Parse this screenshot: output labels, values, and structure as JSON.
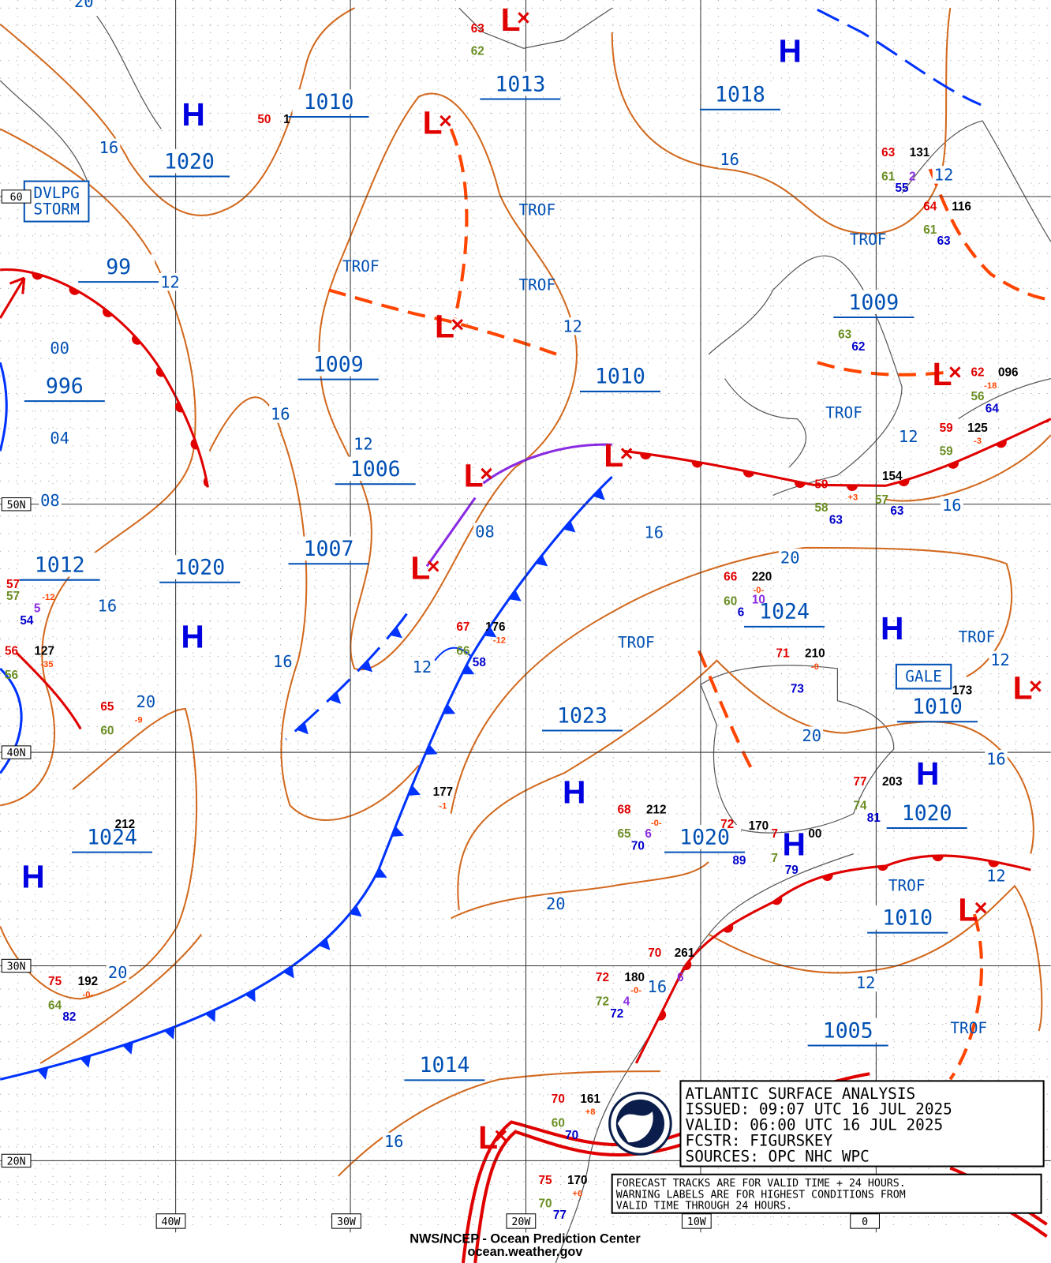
{
  "pressure_labels": [
    "1010",
    "1013",
    "1018",
    "1020",
    "99",
    "996",
    "1009",
    "1010",
    "1009",
    "1006",
    "1007",
    "1012",
    "1020",
    "1024",
    "1023",
    "1010",
    "1020",
    "1024",
    "1020",
    "1010",
    "1005",
    "1014"
  ],
  "highs": [
    "H",
    "H",
    "H",
    "H",
    "H",
    "H",
    "H",
    "H"
  ],
  "lows": [
    "L",
    "L",
    "L",
    "L",
    "L",
    "L",
    "L",
    "L",
    "L",
    "L"
  ],
  "trof_labels": [
    "TROF",
    "TROF",
    "TROF",
    "TROF",
    "TROF",
    "TROF",
    "TROF",
    "TROF",
    "TROF"
  ],
  "isobar_labels": [
    "20",
    "16",
    "12",
    "00",
    "04",
    "08",
    "16",
    "12",
    "12",
    "16",
    "12",
    "12",
    "16",
    "08",
    "16",
    "20",
    "16",
    "16",
    "12",
    "20",
    "12",
    "20",
    "16",
    "12",
    "20",
    "20",
    "16",
    "12",
    "16"
  ],
  "warning_boxes": [
    {
      "lines": [
        "DVLPG",
        "STORM"
      ]
    },
    {
      "lines": [
        "GALE"
      ]
    }
  ],
  "latitude_labels": [
    "60",
    "50N",
    "40N",
    "30N",
    "20N"
  ],
  "longitude_labels": [
    "40W",
    "30W",
    "20W",
    "10W",
    "0"
  ],
  "stations": [
    {
      "text": "63",
      "color": "#e00000"
    },
    {
      "text": "62",
      "color": "#6b8e23"
    },
    {
      "text": "50",
      "color": "#e00000"
    },
    {
      "text": "1",
      "color": "#000"
    },
    {
      "text": "63",
      "color": "#e00000"
    },
    {
      "text": "131",
      "color": "#000"
    },
    {
      "text": "61",
      "color": "#6b8e23"
    },
    {
      "text": "2",
      "color": "#8a2be2"
    },
    {
      "text": "55",
      "color": "#0000cc"
    },
    {
      "text": "64",
      "color": "#e00000"
    },
    {
      "text": "116",
      "color": "#000"
    },
    {
      "text": "61",
      "color": "#6b8e23"
    },
    {
      "text": "63",
      "color": "#0000cc"
    },
    {
      "text": "63",
      "color": "#6b8e23"
    },
    {
      "text": "62",
      "color": "#0000cc"
    },
    {
      "text": "62",
      "color": "#e00000"
    },
    {
      "text": "096",
      "color": "#000"
    },
    {
      "text": "-18",
      "color": "#ff4500"
    },
    {
      "text": "56",
      "color": "#6b8e23"
    },
    {
      "text": "64",
      "color": "#0000cc"
    },
    {
      "text": "59",
      "color": "#e00000"
    },
    {
      "text": "125",
      "color": "#000"
    },
    {
      "text": "-3",
      "color": "#ff4500"
    },
    {
      "text": "59",
      "color": "#6b8e23"
    },
    {
      "text": "59",
      "color": "#e00000"
    },
    {
      "text": "154",
      "color": "#000"
    },
    {
      "text": "+3",
      "color": "#ff4500"
    },
    {
      "text": "57",
      "color": "#6b8e23"
    },
    {
      "text": "58",
      "color": "#6b8e23"
    },
    {
      "text": "63",
      "color": "#0000cc"
    },
    {
      "text": "63",
      "color": "#0000cc"
    },
    {
      "text": "57",
      "color": "#e00000"
    },
    {
      "text": "-12",
      "color": "#ff4500"
    },
    {
      "text": "57",
      "color": "#6b8e23"
    },
    {
      "text": "54",
      "color": "#0000cc"
    },
    {
      "text": "5",
      "color": "#8a2be2"
    },
    {
      "text": "56",
      "color": "#e00000"
    },
    {
      "text": "127",
      "color": "#000"
    },
    {
      "text": "-35",
      "color": "#ff4500"
    },
    {
      "text": "56",
      "color": "#6b8e23"
    },
    {
      "text": "65",
      "color": "#e00000"
    },
    {
      "text": "-9",
      "color": "#ff4500"
    },
    {
      "text": "60",
      "color": "#6b8e23"
    },
    {
      "text": "67",
      "color": "#e00000"
    },
    {
      "text": "176",
      "color": "#000"
    },
    {
      "text": "-12",
      "color": "#ff4500"
    },
    {
      "text": "66",
      "color": "#6b8e23"
    },
    {
      "text": "58",
      "color": "#0000cc"
    },
    {
      "text": "66",
      "color": "#e00000"
    },
    {
      "text": "220",
      "color": "#000"
    },
    {
      "text": "-0-",
      "color": "#ff4500"
    },
    {
      "text": "60",
      "color": "#6b8e23"
    },
    {
      "text": "10",
      "color": "#8a2be2"
    },
    {
      "text": "6",
      "color": "#0000cc"
    },
    {
      "text": "71",
      "color": "#e00000"
    },
    {
      "text": "210",
      "color": "#000"
    },
    {
      "text": "-0",
      "color": "#ff4500"
    },
    {
      "text": "73",
      "color": "#0000cc"
    },
    {
      "text": "177",
      "color": "#000"
    },
    {
      "text": "-1",
      "color": "#ff4500"
    },
    {
      "text": "212",
      "color": "#000"
    },
    {
      "text": "68",
      "color": "#e00000"
    },
    {
      "text": "212",
      "color": "#000"
    },
    {
      "text": "-0-",
      "color": "#ff4500"
    },
    {
      "text": "65",
      "color": "#6b8e23"
    },
    {
      "text": "6",
      "color": "#8a2be2"
    },
    {
      "text": "70",
      "color": "#0000cc"
    },
    {
      "text": "72",
      "color": "#e00000"
    },
    {
      "text": "170",
      "color": "#000"
    },
    {
      "text": "7",
      "color": "#e00000"
    },
    {
      "text": "89",
      "color": "#0000cc"
    },
    {
      "text": "7",
      "color": "#6b8e23"
    },
    {
      "text": "79",
      "color": "#0000cc"
    },
    {
      "text": "00",
      "color": "#000"
    },
    {
      "text": "77",
      "color": "#e00000"
    },
    {
      "text": "203",
      "color": "#000"
    },
    {
      "text": "74",
      "color": "#6b8e23"
    },
    {
      "text": "81",
      "color": "#0000cc"
    },
    {
      "text": "173",
      "color": "#000"
    },
    {
      "text": "70",
      "color": "#e00000"
    },
    {
      "text": "261",
      "color": "#000"
    },
    {
      "text": "6",
      "color": "#8a2be2"
    },
    {
      "text": "72",
      "color": "#e00000"
    },
    {
      "text": "180",
      "color": "#000"
    },
    {
      "text": "-0-",
      "color": "#ff4500"
    },
    {
      "text": "72",
      "color": "#6b8e23"
    },
    {
      "text": "4",
      "color": "#8a2be2"
    },
    {
      "text": "72",
      "color": "#0000cc"
    },
    {
      "text": "75",
      "color": "#e00000"
    },
    {
      "text": "192",
      "color": "#000"
    },
    {
      "text": "-0-",
      "color": "#ff4500"
    },
    {
      "text": "64",
      "color": "#6b8e23"
    },
    {
      "text": "82",
      "color": "#0000cc"
    },
    {
      "text": "70",
      "color": "#e00000"
    },
    {
      "text": "161",
      "color": "#000"
    },
    {
      "text": "+8",
      "color": "#ff4500"
    },
    {
      "text": "60",
      "color": "#6b8e23"
    },
    {
      "text": "70",
      "color": "#0000cc"
    },
    {
      "text": "75",
      "color": "#e00000"
    },
    {
      "text": "170",
      "color": "#000"
    },
    {
      "text": "+6",
      "color": "#ff4500"
    },
    {
      "text": "70",
      "color": "#6b8e23"
    },
    {
      "text": "77",
      "color": "#0000cc"
    }
  ],
  "legend": [
    "ATLANTIC SURFACE ANALYSIS",
    "ISSUED:  09:07 UTC 16 JUL 2025",
    "VALID:   06:00 UTC 16 JUL 2025",
    "FCSTR:   FIGURSKEY",
    "SOURCES: OPC NHC WPC"
  ],
  "note": [
    "FORECAST TRACKS ARE FOR VALID TIME + 24 HOURS.",
    "WARNING LABELS ARE FOR HIGHEST CONDITIONS FROM",
    "VALID TIME THROUGH 24 HOURS."
  ],
  "footer": [
    "NWS/NCEP - Ocean Prediction Center",
    "ocean.weather.gov"
  ]
}
